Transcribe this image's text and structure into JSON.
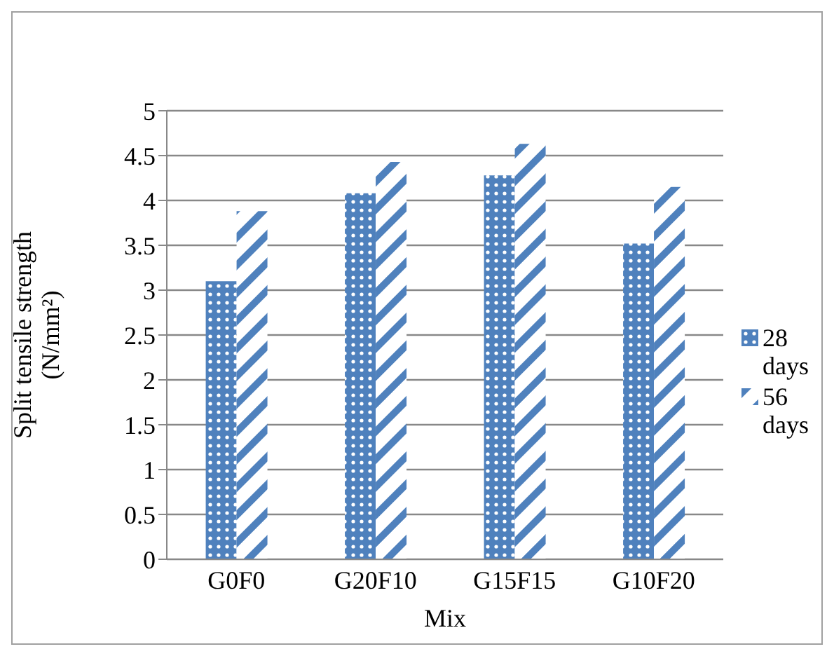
{
  "chart_data": {
    "type": "bar",
    "xlabel": "Mix",
    "ylabel": "Split tensile strength (N/mm²)",
    "categories": [
      "G0F0",
      "G20F10",
      "G15F15",
      "G10F20"
    ],
    "series": [
      {
        "name": "28 days",
        "color": "#4f81bd",
        "values": [
          3.1,
          4.08,
          4.28,
          3.52
        ]
      },
      {
        "name": "56 days",
        "color": "#4f81bd",
        "values": [
          3.88,
          4.43,
          4.63,
          4.15
        ]
      }
    ],
    "ylim": [
      0,
      5
    ],
    "yticks": [
      0,
      0.5,
      1,
      1.5,
      2,
      2.5,
      3,
      3.5,
      4,
      4.5,
      5
    ],
    "grid": "y",
    "legend": "right"
  }
}
